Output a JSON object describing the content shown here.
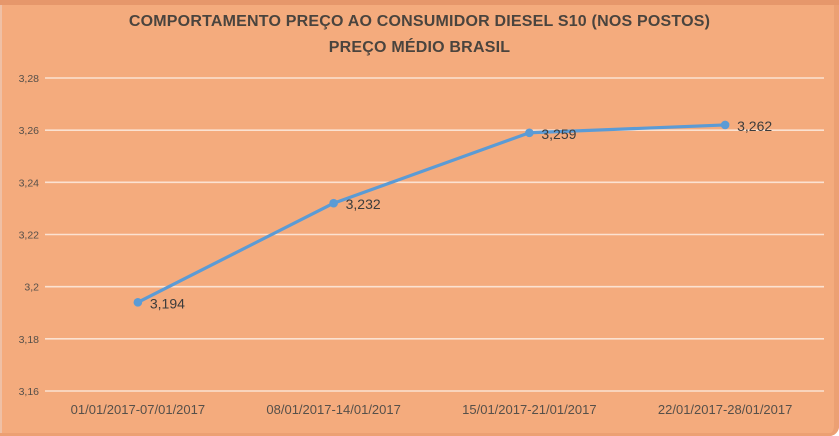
{
  "chart_data": {
    "type": "line",
    "title_line1": "COMPORTAMENTO PREÇO AO CONSUMIDOR DIESEL S10 (NOS POSTOS)",
    "title_line2": "PREÇO MÉDIO BRASIL",
    "categories": [
      "01/01/2017-07/01/2017",
      "08/01/2017-14/01/2017",
      "15/01/2017-21/01/2017",
      "22/01/2017-28/01/2017"
    ],
    "values": [
      3.194,
      3.232,
      3.259,
      3.262
    ],
    "data_labels": [
      "3,194",
      "3,232",
      "3,259",
      "3,262"
    ],
    "xlabel": "",
    "ylabel": "",
    "legend": "none",
    "grid": true,
    "y_axis": {
      "min": 3.16,
      "max": 3.28,
      "step": 0.02,
      "ticks": [
        {
          "value": 3.28,
          "label": "3,28"
        },
        {
          "value": 3.26,
          "label": "3,26"
        },
        {
          "value": 3.24,
          "label": "3,24"
        },
        {
          "value": 3.22,
          "label": "3,22"
        },
        {
          "value": 3.2,
          "label": "3,2"
        },
        {
          "value": 3.18,
          "label": "3,18"
        },
        {
          "value": 3.16,
          "label": "3,16"
        }
      ]
    },
    "colors": {
      "background": "#F4AB7D",
      "border": "#ECA073",
      "line": "#5B9BD5",
      "marker": "#5B9BD5",
      "grid": "#FFFFFF",
      "axis_text": "#56504A",
      "data_label_text": "#3C3C3C",
      "title_text": "#4A443E"
    }
  }
}
